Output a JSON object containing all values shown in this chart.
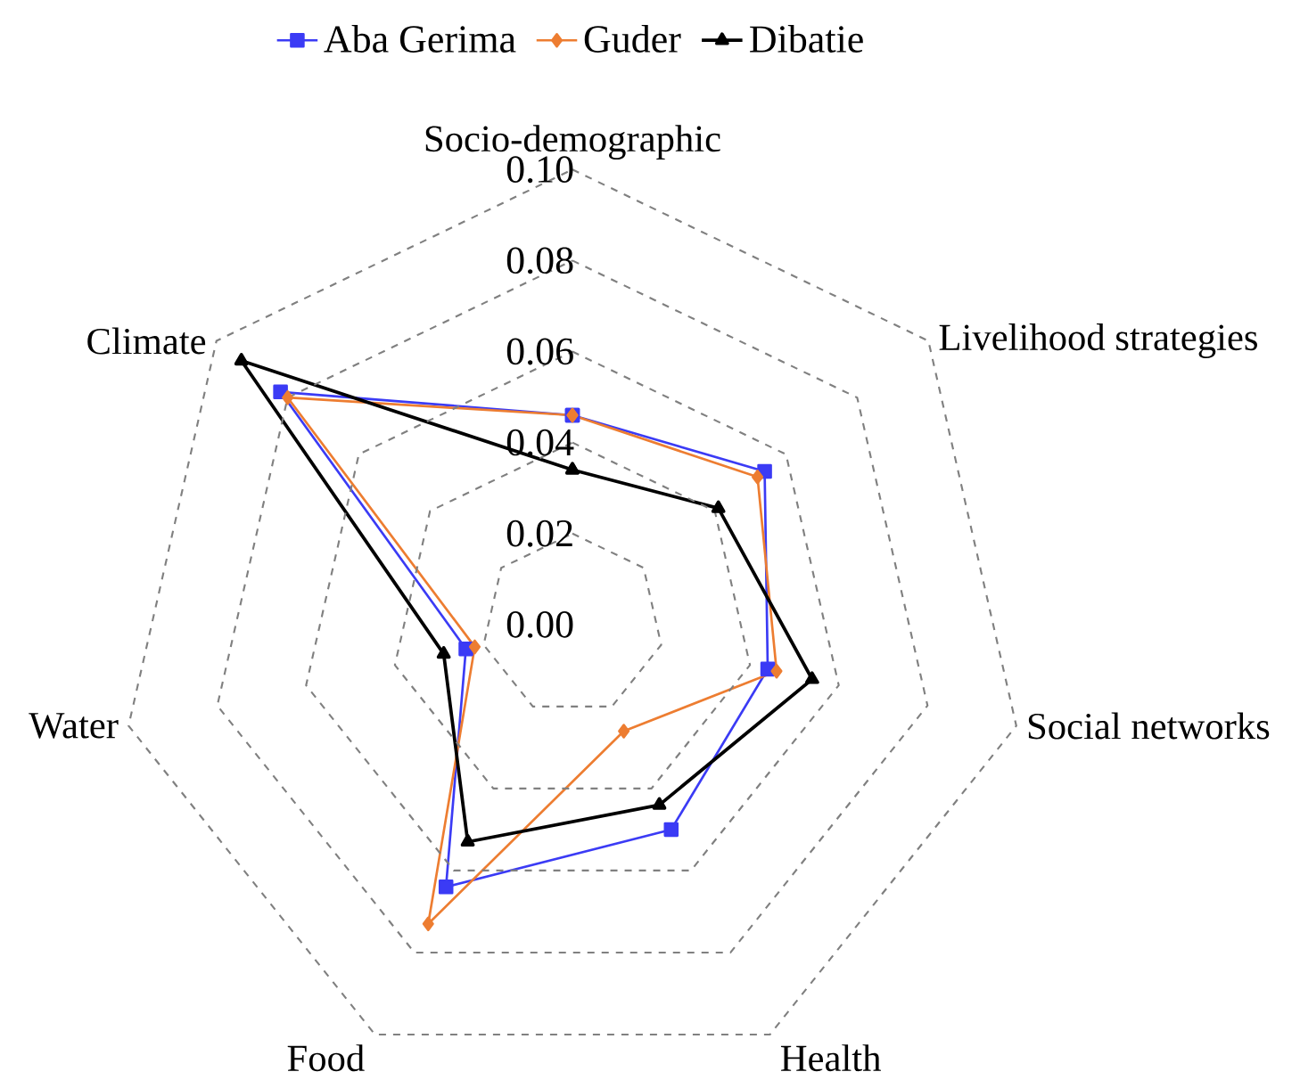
{
  "chart_data": {
    "type": "radar",
    "categories": [
      "Socio-demographic",
      "Livelihood strategies",
      "Social networks",
      "Health",
      "Food",
      "Water",
      "Climate"
    ],
    "series": [
      {
        "name": "Aba Gerima",
        "color": "#3b3bf5",
        "marker": "square",
        "values": [
          0.046,
          0.054,
          0.044,
          0.05,
          0.064,
          0.024,
          0.082
        ]
      },
      {
        "name": "Guder",
        "color": "#ed7d31",
        "marker": "diamond",
        "values": [
          0.046,
          0.052,
          0.046,
          0.026,
          0.073,
          0.022,
          0.08
        ]
      },
      {
        "name": "Dibatie",
        "color": "#000000",
        "marker": "triangle",
        "values": [
          0.034,
          0.041,
          0.054,
          0.044,
          0.053,
          0.029,
          0.093
        ]
      }
    ],
    "ylim": [
      0,
      0.1
    ],
    "yticks": [
      {
        "value": 0,
        "label": "0.00"
      },
      {
        "value": 0.02,
        "label": "0.02"
      },
      {
        "value": 0.04,
        "label": "0.04"
      },
      {
        "value": 0.06,
        "label": "0.06"
      },
      {
        "value": 0.08,
        "label": "0.08"
      },
      {
        "value": 0.1,
        "label": "0.10"
      }
    ],
    "grid": true,
    "legend": "top",
    "line_style": "solid"
  }
}
